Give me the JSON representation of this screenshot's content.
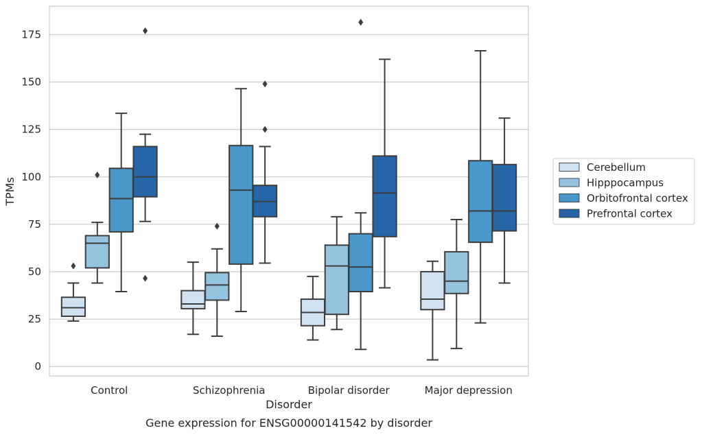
{
  "chart_data": {
    "type": "box",
    "title": "",
    "caption": "Gene expression for ENSG00000141542 by disorder",
    "xlabel": "Disorder",
    "ylabel": "TPMs",
    "ylim": [
      -5,
      190
    ],
    "yticks": [
      0,
      25,
      50,
      75,
      100,
      125,
      150,
      175
    ],
    "grid": "horizontal",
    "legend_position": "right",
    "categories": [
      "Control",
      "Schizophrenia",
      "Bipolar disorder",
      "Major depression"
    ],
    "series": [
      {
        "name": "Cerebellum",
        "color": "#d0e1f2",
        "boxes": [
          {
            "whislo": 24,
            "q1": 26.5,
            "med": 31,
            "q3": 36.5,
            "whishi": 44,
            "fliers": [
              53
            ]
          },
          {
            "whislo": 17,
            "q1": 30.5,
            "med": 33,
            "q3": 40,
            "whishi": 55,
            "fliers": []
          },
          {
            "whislo": 14,
            "q1": 21.5,
            "med": 28.5,
            "q3": 35.5,
            "whishi": 47.5,
            "fliers": []
          },
          {
            "whislo": 3.5,
            "q1": 30,
            "med": 35.5,
            "q3": 50,
            "whishi": 55.5,
            "fliers": []
          }
        ]
      },
      {
        "name": "Hipppocampus",
        "color": "#94c4df",
        "boxes": [
          {
            "whislo": 44,
            "q1": 52,
            "med": 65,
            "q3": 69,
            "whishi": 76,
            "fliers": [
              101
            ]
          },
          {
            "whislo": 16,
            "q1": 35,
            "med": 43,
            "q3": 49.5,
            "whishi": 62,
            "fliers": [
              74
            ]
          },
          {
            "whislo": 19.5,
            "q1": 27.5,
            "med": 53,
            "q3": 64,
            "whishi": 79,
            "fliers": []
          },
          {
            "whislo": 9.5,
            "q1": 38.5,
            "med": 45,
            "q3": 60.5,
            "whishi": 77.5,
            "fliers": []
          }
        ]
      },
      {
        "name": "Orbitofrontal cortex",
        "color": "#4a98c9",
        "boxes": [
          {
            "whislo": 39.5,
            "q1": 71,
            "med": 88.5,
            "q3": 104.5,
            "whishi": 133.5,
            "fliers": []
          },
          {
            "whislo": 29,
            "q1": 54,
            "med": 93,
            "q3": 116.5,
            "whishi": 146.5,
            "fliers": []
          },
          {
            "whislo": 9,
            "q1": 39.5,
            "med": 52.5,
            "q3": 70,
            "whishi": 81,
            "fliers": [
              181.5
            ]
          },
          {
            "whislo": 23,
            "q1": 65.5,
            "med": 82,
            "q3": 108.5,
            "whishi": 166.5,
            "fliers": []
          }
        ]
      },
      {
        "name": "Prefrontal cortex",
        "color": "#2565a8",
        "boxes": [
          {
            "whislo": 76.5,
            "q1": 89.5,
            "med": 100,
            "q3": 116,
            "whishi": 122.5,
            "fliers": [
              177,
              46.5
            ]
          },
          {
            "whislo": 54.5,
            "q1": 79,
            "med": 87,
            "q3": 95.5,
            "whishi": 116,
            "fliers": [
              149,
              125
            ]
          },
          {
            "whislo": 41.5,
            "q1": 68.5,
            "med": 91.5,
            "q3": 111,
            "whishi": 162,
            "fliers": []
          },
          {
            "whislo": 44,
            "q1": 71.5,
            "med": 82,
            "q3": 106.5,
            "whishi": 131,
            "fliers": []
          }
        ]
      }
    ]
  }
}
